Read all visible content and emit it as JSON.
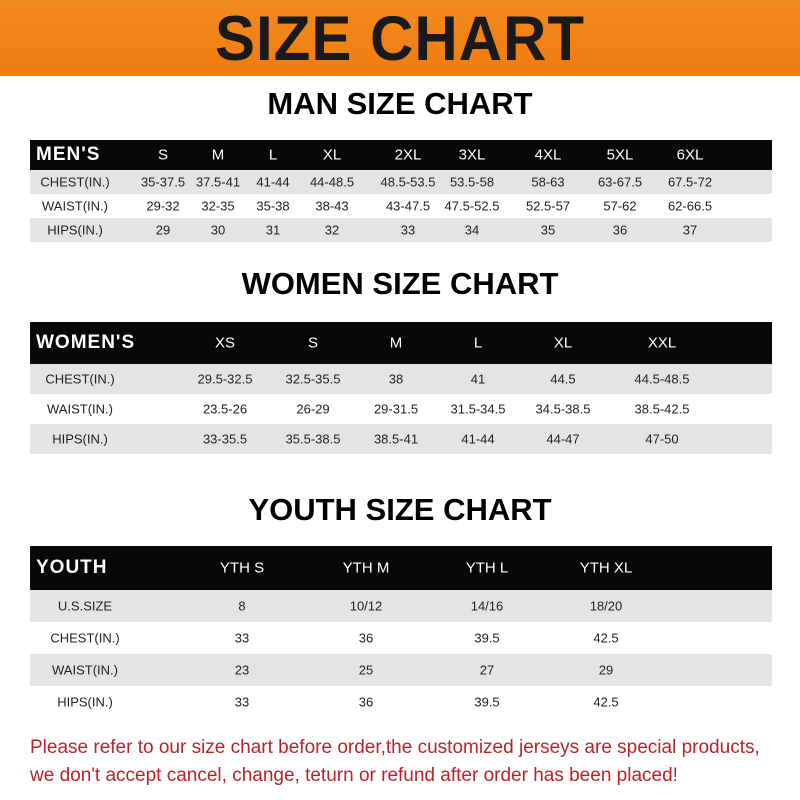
{
  "title": "SIZE CHART",
  "colors": {
    "banner": "#f07c10",
    "header_row": "#080808",
    "stripe": "#e4e4e4",
    "note": "#b8242a"
  },
  "men": {
    "title": "MAN SIZE CHART",
    "header": [
      "MEN'S",
      "S",
      "M",
      "L",
      "XL",
      "2XL",
      "3XL",
      "4XL",
      "5XL",
      "6XL"
    ],
    "rows": [
      [
        "CHEST(IN.)",
        "35-37.5",
        "37.5-41",
        "41-44",
        "44-48.5",
        "48.5-53.5",
        "53.5-58",
        "58-63",
        "63-67.5",
        "67.5-72"
      ],
      [
        "WAIST(IN.)",
        "29-32",
        "32-35",
        "35-38",
        "38-43",
        "43-47.5",
        "47.5-52.5",
        "52.5-57",
        "57-62",
        "62-66.5"
      ],
      [
        "HIPS(IN.)",
        "29",
        "30",
        "31",
        "32",
        "33",
        "34",
        "35",
        "36",
        "37"
      ]
    ]
  },
  "women": {
    "title": "WOMEN SIZE CHART",
    "header": [
      "WOMEN'S",
      "XS",
      "S",
      "M",
      "L",
      "XL",
      "XXL"
    ],
    "rows": [
      [
        "CHEST(IN.)",
        "29.5-32.5",
        "32.5-35.5",
        "38",
        "41",
        "44.5",
        "44.5-48.5"
      ],
      [
        "WAIST(IN.)",
        "23.5-26",
        "26-29",
        "29-31.5",
        "31.5-34.5",
        "34.5-38.5",
        "38.5-42.5"
      ],
      [
        "HIPS(IN.)",
        "33-35.5",
        "35.5-38.5",
        "38.5-41",
        "41-44",
        "44-47",
        "47-50"
      ]
    ]
  },
  "youth": {
    "title": "YOUTH SIZE CHART",
    "header": [
      "YOUTH",
      "YTH S",
      "YTH M",
      "YTH L",
      "YTH XL"
    ],
    "rows": [
      [
        "U.S.SIZE",
        "8",
        "10/12",
        "14/16",
        "18/20"
      ],
      [
        "CHEST(IN.)",
        "33",
        "36",
        "39.5",
        "42.5"
      ],
      [
        "WAIST(IN.)",
        "23",
        "25",
        "27",
        "29"
      ],
      [
        "HIPS(IN.)",
        "33",
        "36",
        "39.5",
        "42.5"
      ]
    ]
  },
  "note": {
    "line1": "Please refer to our size chart before order,the customized jerseys are special products,",
    "line2": "we don't accept cancel, change, teturn or refund after order has been placed!"
  }
}
